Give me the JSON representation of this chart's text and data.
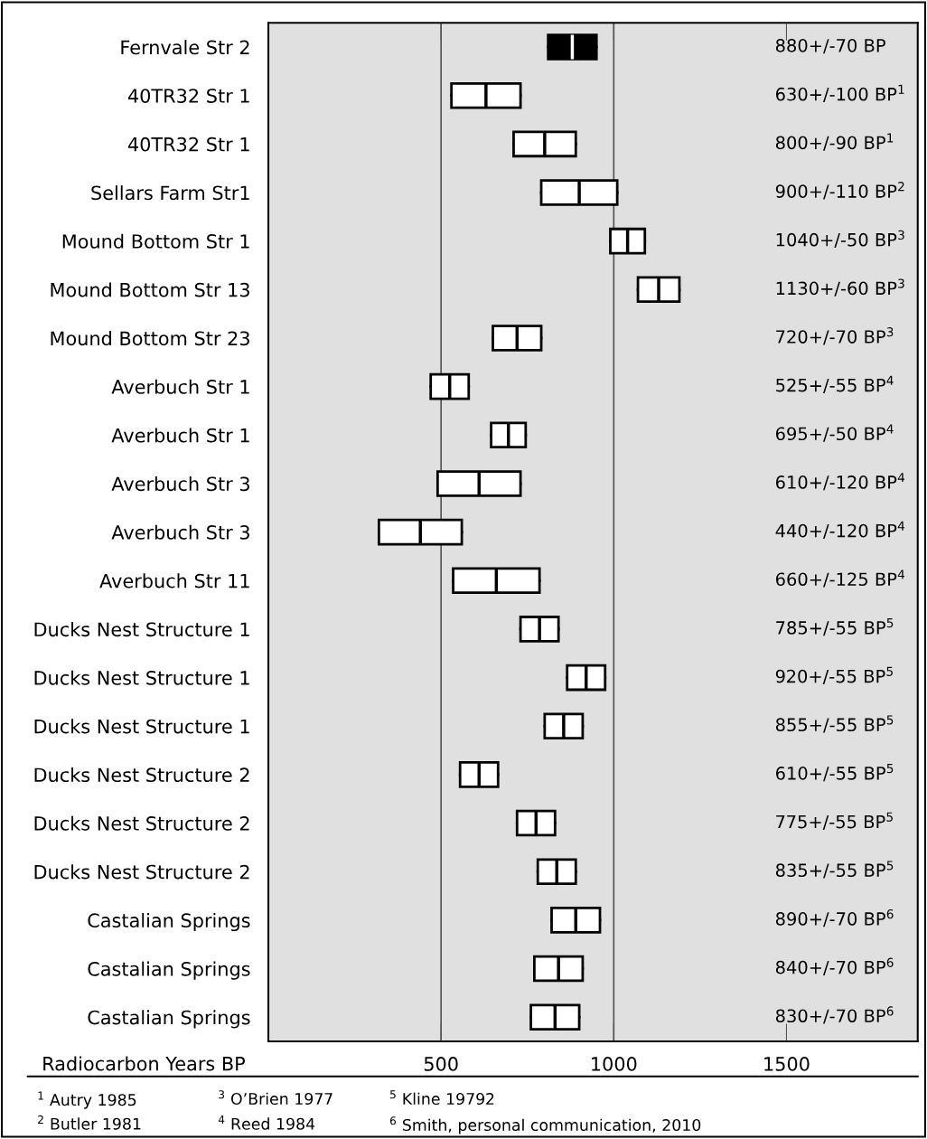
{
  "chart_data": {
    "type": "box",
    "orientation": "horizontal",
    "xlabel": "Radiocarbon Years BP",
    "categories": [
      "Fernvale Str 2",
      "40TR32 Str 1",
      "40TR32 Str 1",
      "Sellars Farm Str1",
      "Mound Bottom Str 1",
      "Mound Bottom Str 13",
      "Mound Bottom Str 23",
      "Averbuch Str 1",
      "Averbuch Str 1",
      "Averbuch Str 3",
      "Averbuch Str 3",
      "Averbuch Str 11",
      "Ducks Nest Structure 1",
      "Ducks Nest Structure 1",
      "Ducks Nest Structure 1",
      "Ducks Nest Structure 2",
      "Ducks Nest Structure 2",
      "Ducks Nest Structure 2",
      "Castalian Springs",
      "Castalian Springs",
      "Castalian Springs"
    ],
    "boxes": [
      {
        "low": 810,
        "q1": 810,
        "median": 880,
        "q3": 950,
        "high": 950
      },
      {
        "low": 530,
        "q1": 530,
        "median": 630,
        "q3": 730,
        "high": 730
      },
      {
        "low": 710,
        "q1": 710,
        "median": 800,
        "q3": 890,
        "high": 890
      },
      {
        "low": 790,
        "q1": 790,
        "median": 900,
        "q3": 1010,
        "high": 1010
      },
      {
        "low": 990,
        "q1": 990,
        "median": 1040,
        "q3": 1090,
        "high": 1090
      },
      {
        "low": 1070,
        "q1": 1070,
        "median": 1130,
        "q3": 1190,
        "high": 1190
      },
      {
        "low": 650,
        "q1": 650,
        "median": 720,
        "q3": 790,
        "high": 790
      },
      {
        "low": 470,
        "q1": 470,
        "median": 525,
        "q3": 580,
        "high": 580
      },
      {
        "low": 645,
        "q1": 645,
        "median": 695,
        "q3": 745,
        "high": 745
      },
      {
        "low": 490,
        "q1": 490,
        "median": 610,
        "q3": 730,
        "high": 730
      },
      {
        "low": 320,
        "q1": 320,
        "median": 440,
        "q3": 560,
        "high": 560
      },
      {
        "low": 535,
        "q1": 535,
        "median": 660,
        "q3": 785,
        "high": 785
      },
      {
        "low": 730,
        "q1": 730,
        "median": 785,
        "q3": 840,
        "high": 840
      },
      {
        "low": 865,
        "q1": 865,
        "median": 920,
        "q3": 975,
        "high": 975
      },
      {
        "low": 800,
        "q1": 800,
        "median": 855,
        "q3": 910,
        "high": 910
      },
      {
        "low": 555,
        "q1": 555,
        "median": 610,
        "q3": 665,
        "high": 665
      },
      {
        "low": 720,
        "q1": 720,
        "median": 775,
        "q3": 830,
        "high": 830
      },
      {
        "low": 780,
        "q1": 780,
        "median": 835,
        "q3": 890,
        "high": 890
      },
      {
        "low": 820,
        "q1": 820,
        "median": 890,
        "q3": 960,
        "high": 960
      },
      {
        "low": 770,
        "q1": 770,
        "median": 840,
        "q3": 910,
        "high": 910
      },
      {
        "low": 760,
        "q1": 760,
        "median": 830,
        "q3": 900,
        "high": 900
      }
    ],
    "colors": [
      "#000000",
      "#ffffff",
      "#ffffff",
      "#ffffff",
      "#ffffff",
      "#ffffff",
      "#ffffff",
      "#ffffff",
      "#ffffff",
      "#ffffff",
      "#ffffff",
      "#ffffff",
      "#ffffff",
      "#ffffff",
      "#ffffff",
      "#ffffff",
      "#ffffff",
      "#ffffff",
      "#ffffff",
      "#ffffff",
      "#ffffff"
    ],
    "value_labels": [
      "880+/-70 BP",
      "630+/-100 BP$^{1}$",
      "800+/-90 BP$^{1}$",
      "900+/-110 BP$^{2}$",
      "1040+/-50 BP$^{3}$",
      "1130+/-60 BP$^{3}$",
      "720+/-70 BP$^{3}$",
      "525+/-55 BP$^{4}$",
      "695+/-50 BP$^{4}$",
      "610+/-120 BP$^{4}$",
      "440+/-120 BP$^{4}$",
      "660+/-125 BP$^{4}$",
      "785+/-55 BP$^{5}$",
      "920+/-55 BP$^{5}$",
      "855+/-55 BP$^{5}$",
      "610+/-55 BP$^{5}$",
      "775+/-55 BP$^{5}$",
      "835+/-55 BP$^{5}$",
      "890+/-70 BP$^{6}$",
      "840+/-70 BP$^{6}$",
      "830+/-70 BP$^{6}$"
    ],
    "xlim": [
      0,
      1880
    ],
    "xticks": [
      500,
      1000,
      1500
    ],
    "ref_lines": [
      {
        "axis": "x",
        "value": 500,
        "color": "#555555"
      },
      {
        "axis": "x",
        "value": 1000,
        "color": "#555555"
      }
    ],
    "annotations": [
      "$^{1}$ Autry 1985",
      "$^{2}$ Butler 1981",
      "$^{3}$ O’Brien 1977",
      "$^{4}$ Reed 1984",
      "$^{5}$ Kline 19792",
      "$^{6}$ Smith, personal communication, 2010"
    ]
  }
}
